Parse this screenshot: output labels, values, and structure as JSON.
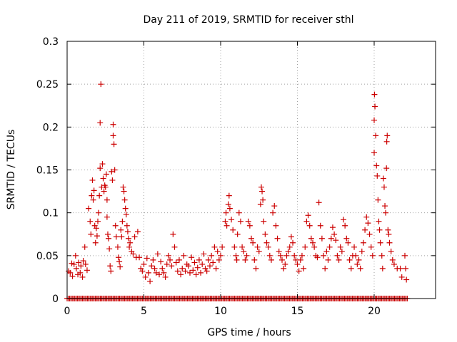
{
  "colors": {
    "points": "#cc0000",
    "axis": "#000000",
    "grid": "#a0a0a0"
  },
  "chart_data": {
    "type": "scatter",
    "title": "Day 211 of 2019, SRMTID for receiver sthl",
    "xlabel": "GPS time / hours",
    "ylabel": "SRMTID / TECUs",
    "xlim": [
      0,
      24
    ],
    "ylim": [
      0,
      0.3
    ],
    "xticks": [
      0,
      5,
      10,
      15,
      20
    ],
    "xtick_labels": [
      "0",
      "5",
      "10",
      "15",
      "20"
    ],
    "yticks": [
      0,
      0.05,
      0.1,
      0.15,
      0.2,
      0.25,
      0.3
    ],
    "ytick_labels": [
      "0",
      "0.05",
      "0.1",
      "0.15",
      "0.2",
      "0.25",
      "0.3"
    ],
    "grid": true,
    "legend": "none",
    "marker": "plus",
    "series": [
      {
        "name": "SRMTID",
        "points": [
          [
            0.1,
            0.032
          ],
          [
            0.2,
            0.03
          ],
          [
            0.3,
            0.041
          ],
          [
            0.35,
            0.026
          ],
          [
            0.45,
            0.04
          ],
          [
            0.55,
            0.05
          ],
          [
            0.6,
            0.035
          ],
          [
            0.7,
            0.028
          ],
          [
            0.75,
            0.042
          ],
          [
            0.85,
            0.03
          ],
          [
            0.9,
            0.038
          ],
          [
            1.0,
            0.025
          ],
          [
            1.05,
            0.044
          ],
          [
            1.15,
            0.06
          ],
          [
            1.2,
            0.04
          ],
          [
            1.3,
            0.033
          ],
          [
            1.4,
            0.105
          ],
          [
            1.5,
            0.09
          ],
          [
            1.55,
            0.075
          ],
          [
            1.6,
            0.12
          ],
          [
            1.65,
            0.138
          ],
          [
            1.7,
            0.115
          ],
          [
            1.75,
            0.126
          ],
          [
            1.8,
            0.085
          ],
          [
            1.85,
            0.065
          ],
          [
            1.9,
            0.082
          ],
          [
            1.95,
            0.073
          ],
          [
            2.0,
            0.09
          ],
          [
            2.05,
            0.1
          ],
          [
            2.1,
            0.12
          ],
          [
            2.15,
            0.152
          ],
          [
            2.15,
            0.205
          ],
          [
            2.2,
            0.25
          ],
          [
            2.25,
            0.13
          ],
          [
            2.3,
            0.157
          ],
          [
            2.35,
            0.14
          ],
          [
            2.4,
            0.125
          ],
          [
            2.45,
            0.132
          ],
          [
            2.5,
            0.13
          ],
          [
            2.55,
            0.145
          ],
          [
            2.6,
            0.095
          ],
          [
            2.6,
            0.115
          ],
          [
            2.65,
            0.075
          ],
          [
            2.7,
            0.07
          ],
          [
            2.75,
            0.058
          ],
          [
            2.8,
            0.038
          ],
          [
            2.85,
            0.032
          ],
          [
            2.9,
            0.148
          ],
          [
            2.95,
            0.138
          ],
          [
            3.0,
            0.203
          ],
          [
            3.0,
            0.19
          ],
          [
            3.05,
            0.18
          ],
          [
            3.1,
            0.15
          ],
          [
            3.15,
            0.085
          ],
          [
            3.2,
            0.072
          ],
          [
            3.3,
            0.06
          ],
          [
            3.35,
            0.048
          ],
          [
            3.4,
            0.043
          ],
          [
            3.45,
            0.037
          ],
          [
            3.5,
            0.08
          ],
          [
            3.55,
            0.072
          ],
          [
            3.6,
            0.09
          ],
          [
            3.65,
            0.13
          ],
          [
            3.7,
            0.125
          ],
          [
            3.75,
            0.115
          ],
          [
            3.8,
            0.105
          ],
          [
            3.85,
            0.098
          ],
          [
            3.9,
            0.085
          ],
          [
            3.95,
            0.078
          ],
          [
            4.0,
            0.07
          ],
          [
            4.05,
            0.06
          ],
          [
            4.1,
            0.065
          ],
          [
            4.2,
            0.055
          ],
          [
            4.3,
            0.052
          ],
          [
            4.4,
            0.072
          ],
          [
            4.5,
            0.048
          ],
          [
            4.6,
            0.078
          ],
          [
            4.7,
            0.048
          ],
          [
            4.8,
            0.035
          ],
          [
            4.9,
            0.032
          ],
          [
            5.0,
            0.04
          ],
          [
            5.1,
            0.025
          ],
          [
            5.2,
            0.047
          ],
          [
            5.3,
            0.03
          ],
          [
            5.4,
            0.02
          ],
          [
            5.5,
            0.038
          ],
          [
            5.6,
            0.045
          ],
          [
            5.7,
            0.035
          ],
          [
            5.8,
            0.03
          ],
          [
            5.9,
            0.052
          ],
          [
            6.0,
            0.028
          ],
          [
            6.1,
            0.043
          ],
          [
            6.2,
            0.035
          ],
          [
            6.3,
            0.03
          ],
          [
            6.4,
            0.025
          ],
          [
            6.5,
            0.04
          ],
          [
            6.6,
            0.05
          ],
          [
            6.7,
            0.045
          ],
          [
            6.8,
            0.038
          ],
          [
            6.9,
            0.075
          ],
          [
            7.0,
            0.06
          ],
          [
            7.1,
            0.042
          ],
          [
            7.2,
            0.032
          ],
          [
            7.3,
            0.045
          ],
          [
            7.4,
            0.028
          ],
          [
            7.5,
            0.035
          ],
          [
            7.6,
            0.05
          ],
          [
            7.7,
            0.032
          ],
          [
            7.8,
            0.04
          ],
          [
            7.9,
            0.038
          ],
          [
            8.0,
            0.03
          ],
          [
            8.1,
            0.048
          ],
          [
            8.2,
            0.033
          ],
          [
            8.3,
            0.042
          ],
          [
            8.4,
            0.028
          ],
          [
            8.5,
            0.036
          ],
          [
            8.6,
            0.045
          ],
          [
            8.7,
            0.03
          ],
          [
            8.8,
            0.04
          ],
          [
            8.9,
            0.052
          ],
          [
            9.0,
            0.035
          ],
          [
            9.1,
            0.032
          ],
          [
            9.2,
            0.045
          ],
          [
            9.3,
            0.038
          ],
          [
            9.4,
            0.05
          ],
          [
            9.5,
            0.042
          ],
          [
            9.6,
            0.06
          ],
          [
            9.7,
            0.035
          ],
          [
            9.8,
            0.055
          ],
          [
            9.9,
            0.045
          ],
          [
            10.0,
            0.05
          ],
          [
            10.1,
            0.06
          ],
          [
            10.3,
            0.09
          ],
          [
            10.35,
            0.1
          ],
          [
            10.4,
            0.085
          ],
          [
            10.5,
            0.11
          ],
          [
            10.55,
            0.12
          ],
          [
            10.6,
            0.105
          ],
          [
            10.7,
            0.092
          ],
          [
            10.8,
            0.08
          ],
          [
            10.9,
            0.06
          ],
          [
            11.0,
            0.05
          ],
          [
            11.05,
            0.045
          ],
          [
            11.1,
            0.075
          ],
          [
            11.2,
            0.1
          ],
          [
            11.3,
            0.09
          ],
          [
            11.4,
            0.06
          ],
          [
            11.5,
            0.055
          ],
          [
            11.6,
            0.045
          ],
          [
            11.7,
            0.05
          ],
          [
            11.8,
            0.09
          ],
          [
            11.9,
            0.085
          ],
          [
            12.0,
            0.07
          ],
          [
            12.1,
            0.065
          ],
          [
            12.2,
            0.045
          ],
          [
            12.3,
            0.035
          ],
          [
            12.4,
            0.06
          ],
          [
            12.5,
            0.055
          ],
          [
            12.6,
            0.11
          ],
          [
            12.65,
            0.13
          ],
          [
            12.7,
            0.125
          ],
          [
            12.75,
            0.115
          ],
          [
            12.8,
            0.09
          ],
          [
            12.9,
            0.075
          ],
          [
            13.0,
            0.065
          ],
          [
            13.1,
            0.06
          ],
          [
            13.2,
            0.05
          ],
          [
            13.3,
            0.045
          ],
          [
            13.4,
            0.1
          ],
          [
            13.5,
            0.108
          ],
          [
            13.6,
            0.085
          ],
          [
            13.7,
            0.07
          ],
          [
            13.8,
            0.055
          ],
          [
            13.9,
            0.05
          ],
          [
            14.0,
            0.045
          ],
          [
            14.1,
            0.035
          ],
          [
            14.2,
            0.04
          ],
          [
            14.3,
            0.05
          ],
          [
            14.4,
            0.055
          ],
          [
            14.5,
            0.06
          ],
          [
            14.6,
            0.072
          ],
          [
            14.7,
            0.065
          ],
          [
            14.8,
            0.05
          ],
          [
            14.9,
            0.045
          ],
          [
            15.0,
            0.04
          ],
          [
            15.1,
            0.032
          ],
          [
            15.2,
            0.045
          ],
          [
            15.3,
            0.05
          ],
          [
            15.4,
            0.035
          ],
          [
            15.5,
            0.06
          ],
          [
            15.6,
            0.09
          ],
          [
            15.7,
            0.097
          ],
          [
            15.8,
            0.085
          ],
          [
            15.9,
            0.07
          ],
          [
            16.0,
            0.065
          ],
          [
            16.1,
            0.06
          ],
          [
            16.2,
            0.05
          ],
          [
            16.3,
            0.048
          ],
          [
            16.4,
            0.112
          ],
          [
            16.5,
            0.085
          ],
          [
            16.6,
            0.07
          ],
          [
            16.7,
            0.05
          ],
          [
            16.8,
            0.035
          ],
          [
            16.9,
            0.055
          ],
          [
            17.0,
            0.045
          ],
          [
            17.1,
            0.06
          ],
          [
            17.2,
            0.07
          ],
          [
            17.3,
            0.083
          ],
          [
            17.4,
            0.075
          ],
          [
            17.5,
            0.068
          ],
          [
            17.6,
            0.05
          ],
          [
            17.7,
            0.045
          ],
          [
            17.8,
            0.06
          ],
          [
            17.9,
            0.055
          ],
          [
            18.0,
            0.092
          ],
          [
            18.1,
            0.085
          ],
          [
            18.2,
            0.07
          ],
          [
            18.3,
            0.065
          ],
          [
            18.4,
            0.045
          ],
          [
            18.5,
            0.035
          ],
          [
            18.6,
            0.05
          ],
          [
            18.7,
            0.06
          ],
          [
            18.8,
            0.05
          ],
          [
            18.9,
            0.04
          ],
          [
            19.0,
            0.045
          ],
          [
            19.1,
            0.035
          ],
          [
            19.2,
            0.055
          ],
          [
            19.3,
            0.065
          ],
          [
            19.4,
            0.08
          ],
          [
            19.5,
            0.095
          ],
          [
            19.6,
            0.088
          ],
          [
            19.7,
            0.075
          ],
          [
            19.8,
            0.06
          ],
          [
            19.9,
            0.05
          ],
          [
            20.0,
            0.208
          ],
          [
            20.0,
            0.17
          ],
          [
            20.02,
            0.238
          ],
          [
            20.05,
            0.224
          ],
          [
            20.1,
            0.19
          ],
          [
            20.15,
            0.155
          ],
          [
            20.2,
            0.143
          ],
          [
            20.25,
            0.115
          ],
          [
            20.3,
            0.09
          ],
          [
            20.35,
            0.08
          ],
          [
            20.4,
            0.065
          ],
          [
            20.5,
            0.05
          ],
          [
            20.55,
            0.035
          ],
          [
            20.6,
            0.14
          ],
          [
            20.65,
            0.13
          ],
          [
            20.7,
            0.108
          ],
          [
            20.75,
            0.1
          ],
          [
            20.8,
            0.152
          ],
          [
            20.82,
            0.183
          ],
          [
            20.85,
            0.19
          ],
          [
            20.9,
            0.08
          ],
          [
            20.95,
            0.075
          ],
          [
            21.0,
            0.065
          ],
          [
            21.1,
            0.055
          ],
          [
            21.2,
            0.045
          ],
          [
            21.3,
            0.04
          ],
          [
            21.5,
            0.035
          ],
          [
            21.7,
            0.035
          ],
          [
            21.8,
            0.025
          ],
          [
            22.0,
            0.05
          ],
          [
            22.05,
            0.035
          ],
          [
            22.1,
            0.022
          ]
        ],
        "zero_range": [
          0,
          22.2
        ],
        "zero_step": 0.0833
      }
    ]
  }
}
